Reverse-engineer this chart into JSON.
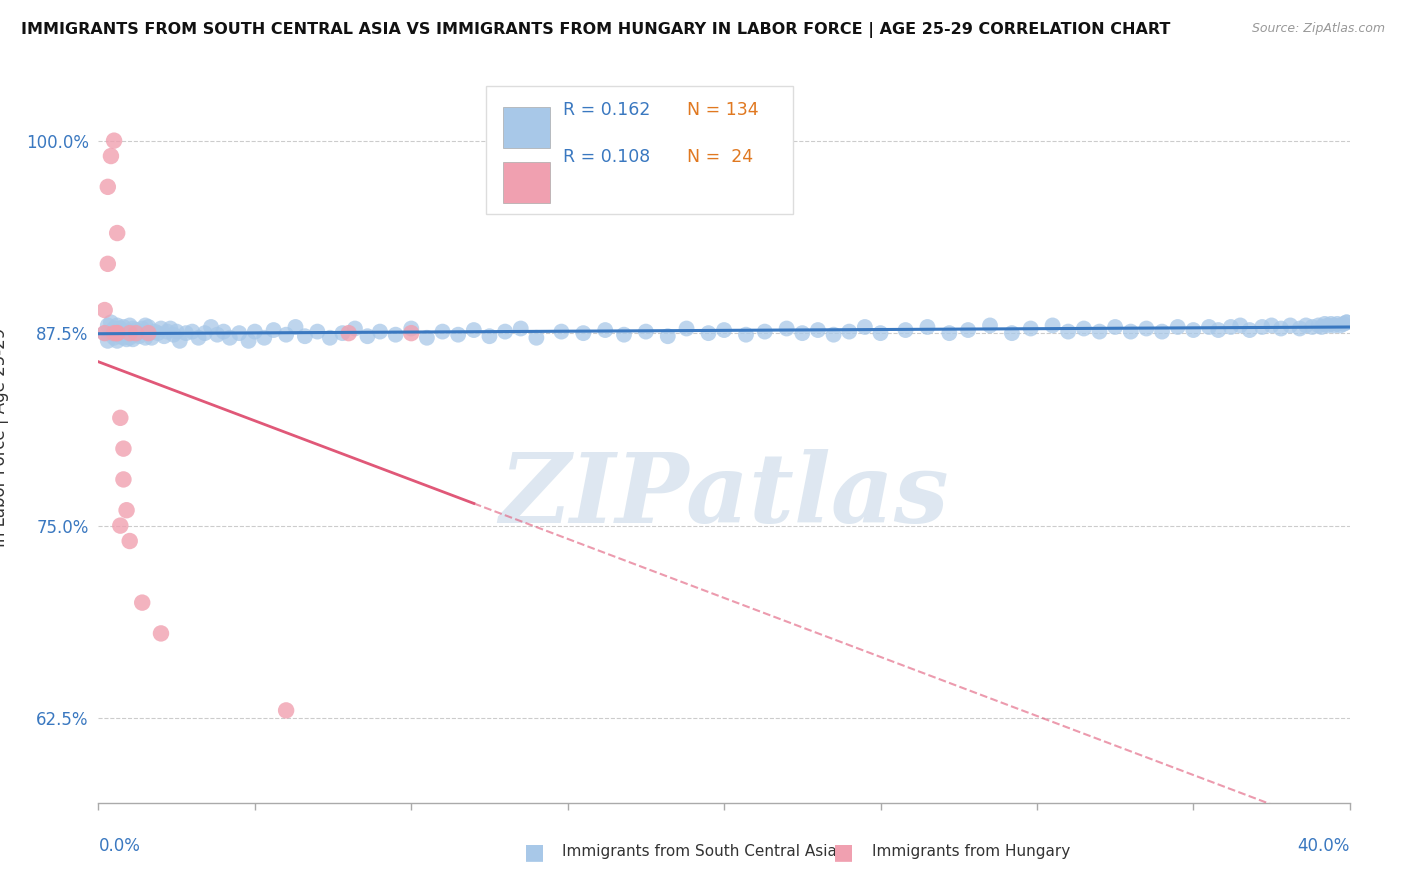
{
  "title": "IMMIGRANTS FROM SOUTH CENTRAL ASIA VS IMMIGRANTS FROM HUNGARY IN LABOR FORCE | AGE 25-29 CORRELATION CHART",
  "source": "Source: ZipAtlas.com",
  "xlim": [
    0.0,
    0.4
  ],
  "ylim": [
    0.57,
    1.045
  ],
  "legend_label_blue": "Immigrants from South Central Asia",
  "legend_label_pink": "Immigrants from Hungary",
  "R_blue": 0.162,
  "N_blue": 134,
  "R_pink": 0.108,
  "N_pink": 24,
  "color_blue": "#a8c8e8",
  "color_pink": "#f0a0b0",
  "color_line_blue": "#3a78c0",
  "color_line_pink": "#e05878",
  "ytick_vals": [
    0.625,
    0.75,
    0.875,
    1.0
  ],
  "ytick_labels": [
    "62.5%",
    "75.0%",
    "87.5%",
    "100.0%"
  ],
  "blue_x": [
    0.002,
    0.003,
    0.003,
    0.004,
    0.004,
    0.005,
    0.005,
    0.005,
    0.006,
    0.006,
    0.007,
    0.007,
    0.007,
    0.008,
    0.008,
    0.008,
    0.009,
    0.009,
    0.01,
    0.01,
    0.01,
    0.01,
    0.011,
    0.011,
    0.011,
    0.012,
    0.012,
    0.013,
    0.013,
    0.014,
    0.015,
    0.015,
    0.016,
    0.016,
    0.017,
    0.018,
    0.019,
    0.02,
    0.021,
    0.022,
    0.023,
    0.024,
    0.025,
    0.026,
    0.028,
    0.03,
    0.032,
    0.034,
    0.036,
    0.038,
    0.04,
    0.042,
    0.045,
    0.048,
    0.05,
    0.053,
    0.056,
    0.06,
    0.063,
    0.066,
    0.07,
    0.074,
    0.078,
    0.082,
    0.086,
    0.09,
    0.095,
    0.1,
    0.105,
    0.11,
    0.115,
    0.12,
    0.125,
    0.13,
    0.135,
    0.14,
    0.148,
    0.155,
    0.162,
    0.168,
    0.175,
    0.182,
    0.188,
    0.195,
    0.2,
    0.207,
    0.213,
    0.22,
    0.225,
    0.23,
    0.235,
    0.24,
    0.245,
    0.25,
    0.258,
    0.265,
    0.272,
    0.278,
    0.285,
    0.292,
    0.298,
    0.305,
    0.31,
    0.315,
    0.32,
    0.325,
    0.33,
    0.335,
    0.34,
    0.345,
    0.35,
    0.355,
    0.358,
    0.362,
    0.365,
    0.368,
    0.372,
    0.375,
    0.378,
    0.381,
    0.384,
    0.386,
    0.388,
    0.39,
    0.391,
    0.392,
    0.393,
    0.394,
    0.395,
    0.396,
    0.397,
    0.398,
    0.399,
    0.399
  ],
  "blue_y": [
    0.875,
    0.88,
    0.87,
    0.875,
    0.882,
    0.878,
    0.872,
    0.875,
    0.88,
    0.87,
    0.875,
    0.878,
    0.873,
    0.876,
    0.872,
    0.879,
    0.875,
    0.871,
    0.88,
    0.874,
    0.876,
    0.872,
    0.875,
    0.878,
    0.871,
    0.877,
    0.874,
    0.876,
    0.873,
    0.878,
    0.88,
    0.872,
    0.875,
    0.879,
    0.872,
    0.876,
    0.875,
    0.878,
    0.873,
    0.876,
    0.878,
    0.874,
    0.876,
    0.87,
    0.875,
    0.876,
    0.872,
    0.875,
    0.879,
    0.874,
    0.876,
    0.872,
    0.875,
    0.87,
    0.876,
    0.872,
    0.877,
    0.874,
    0.879,
    0.873,
    0.876,
    0.872,
    0.875,
    0.878,
    0.873,
    0.876,
    0.874,
    0.878,
    0.872,
    0.876,
    0.874,
    0.877,
    0.873,
    0.876,
    0.878,
    0.872,
    0.876,
    0.875,
    0.877,
    0.874,
    0.876,
    0.873,
    0.878,
    0.875,
    0.877,
    0.874,
    0.876,
    0.878,
    0.875,
    0.877,
    0.874,
    0.876,
    0.879,
    0.875,
    0.877,
    0.879,
    0.875,
    0.877,
    0.88,
    0.875,
    0.878,
    0.88,
    0.876,
    0.878,
    0.876,
    0.879,
    0.876,
    0.878,
    0.876,
    0.879,
    0.877,
    0.879,
    0.877,
    0.879,
    0.88,
    0.877,
    0.879,
    0.88,
    0.878,
    0.88,
    0.878,
    0.88,
    0.879,
    0.88,
    0.879,
    0.881,
    0.88,
    0.881,
    0.88,
    0.881,
    0.88,
    0.881,
    0.882,
    0.882
  ],
  "pink_x": [
    0.002,
    0.002,
    0.003,
    0.003,
    0.004,
    0.005,
    0.005,
    0.006,
    0.006,
    0.006,
    0.007,
    0.007,
    0.008,
    0.008,
    0.009,
    0.01,
    0.01,
    0.012,
    0.014,
    0.016,
    0.02,
    0.06,
    0.08,
    0.1
  ],
  "pink_y": [
    0.875,
    0.89,
    0.92,
    0.97,
    0.99,
    1.0,
    0.875,
    0.875,
    0.94,
    0.875,
    0.75,
    0.82,
    0.8,
    0.78,
    0.76,
    0.74,
    0.875,
    0.875,
    0.7,
    0.875,
    0.68,
    0.63,
    0.875,
    0.875
  ],
  "watermark_text": "ZIPatlas",
  "watermark_color": "#c8d8e8",
  "watermark_alpha": 0.6
}
